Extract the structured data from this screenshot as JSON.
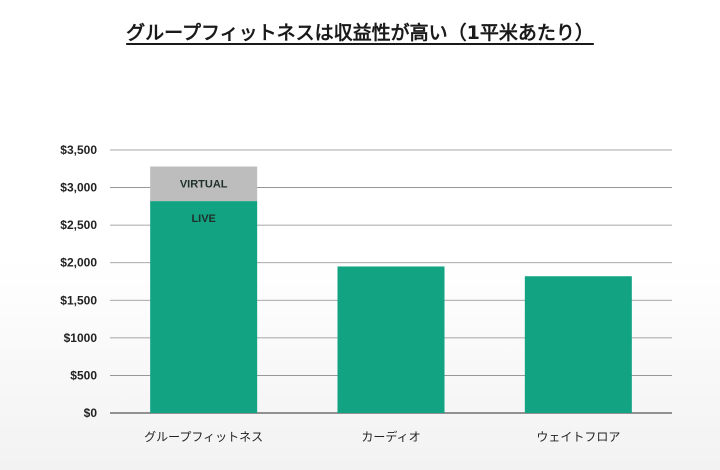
{
  "chart_data": {
    "type": "bar",
    "stacked": true,
    "title": "グループフィットネスは収益性が高い（1平米あたり）",
    "categories": [
      "グループフィットネス",
      "カーディオ",
      "ウェイトフロア"
    ],
    "series": [
      {
        "name": "LIVE",
        "values": [
          2820,
          1950,
          1820
        ],
        "color": "#12a383"
      },
      {
        "name": "VIRTUAL",
        "values": [
          460,
          0,
          0
        ],
        "color": "#bdbdbd"
      }
    ],
    "ylim": [
      0,
      3500
    ],
    "yticks": [
      0,
      500,
      1000,
      1500,
      2000,
      2500,
      3000,
      3500
    ],
    "ytick_labels": [
      "$0",
      "$500",
      "$1000",
      "$1,500",
      "$2,000",
      "$2,500",
      "$3,000",
      "$3,500"
    ],
    "grid": true,
    "xlabel": "",
    "ylabel": ""
  }
}
